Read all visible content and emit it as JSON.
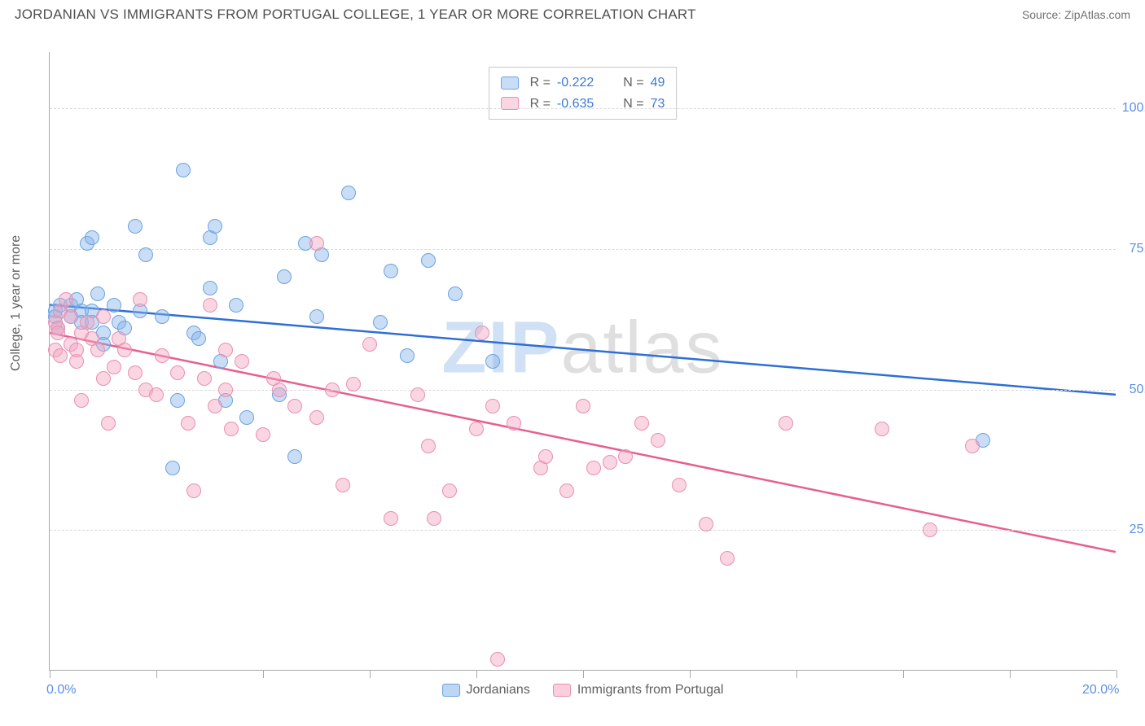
{
  "header": {
    "title": "JORDANIAN VS IMMIGRANTS FROM PORTUGAL COLLEGE, 1 YEAR OR MORE CORRELATION CHART",
    "source": "Source: ZipAtlas.com"
  },
  "chart": {
    "type": "scatter",
    "yaxis_title": "College, 1 year or more",
    "xlim": [
      0,
      20
    ],
    "ylim": [
      0,
      110
    ],
    "xtick_labels": {
      "0": "0.0%",
      "20": "20.0%"
    },
    "ytick_values": [
      25,
      50,
      75,
      100
    ],
    "ytick_labels": {
      "25": "25.0%",
      "50": "50.0%",
      "75": "75.0%",
      "100": "100.0%"
    },
    "xtick_marks": [
      0,
      2,
      4,
      6,
      8,
      10,
      12,
      14,
      16,
      18,
      20
    ],
    "grid_color": "#d9d9d9",
    "background_color": "#ffffff",
    "axis_color": "#aaaaaa",
    "label_color": "#5a8fe6",
    "marker_radius": 9,
    "watermark": {
      "zip": "ZIP",
      "atlas": "atlas"
    },
    "series": [
      {
        "name": "Jordanians",
        "fill": "rgba(135,180,235,0.45)",
        "stroke": "#6ba3e0",
        "trend_color": "#2e6fd6",
        "trend": {
          "x1": 0,
          "y1": 65,
          "x2": 20,
          "y2": 49
        },
        "R": "-0.222",
        "N": "49",
        "points": [
          [
            0.1,
            64
          ],
          [
            0.1,
            63
          ],
          [
            0.2,
            65
          ],
          [
            0.15,
            61
          ],
          [
            0.4,
            65
          ],
          [
            0.4,
            63
          ],
          [
            0.5,
            66
          ],
          [
            0.6,
            64
          ],
          [
            0.6,
            62
          ],
          [
            0.7,
            76
          ],
          [
            0.8,
            77
          ],
          [
            0.8,
            64
          ],
          [
            0.8,
            62
          ],
          [
            0.9,
            67
          ],
          [
            1.0,
            60
          ],
          [
            1.0,
            58
          ],
          [
            1.2,
            65
          ],
          [
            1.3,
            62
          ],
          [
            1.4,
            61
          ],
          [
            1.6,
            79
          ],
          [
            1.7,
            64
          ],
          [
            1.8,
            74
          ],
          [
            2.1,
            63
          ],
          [
            2.3,
            36
          ],
          [
            2.4,
            48
          ],
          [
            2.5,
            89
          ],
          [
            2.7,
            60
          ],
          [
            2.8,
            59
          ],
          [
            3.0,
            77
          ],
          [
            3.0,
            68
          ],
          [
            3.1,
            79
          ],
          [
            3.2,
            55
          ],
          [
            3.3,
            48
          ],
          [
            3.5,
            65
          ],
          [
            3.7,
            45
          ],
          [
            4.3,
            49
          ],
          [
            4.4,
            70
          ],
          [
            4.6,
            38
          ],
          [
            4.8,
            76
          ],
          [
            5.0,
            63
          ],
          [
            5.1,
            74
          ],
          [
            5.6,
            85
          ],
          [
            6.2,
            62
          ],
          [
            6.4,
            71
          ],
          [
            6.7,
            56
          ],
          [
            7.1,
            73
          ],
          [
            7.6,
            67
          ],
          [
            8.3,
            55
          ],
          [
            17.5,
            41
          ]
        ]
      },
      {
        "name": "Immigrants from Portugal",
        "fill": "rgba(245,165,190,0.45)",
        "stroke": "#e98fb0",
        "trend_color": "#e75f8f",
        "trend": {
          "x1": 0,
          "y1": 60,
          "x2": 20,
          "y2": 21
        },
        "R": "-0.635",
        "N": "73",
        "points": [
          [
            0.1,
            62
          ],
          [
            0.1,
            57
          ],
          [
            0.15,
            61
          ],
          [
            0.15,
            60
          ],
          [
            0.2,
            64
          ],
          [
            0.2,
            56
          ],
          [
            0.3,
            66
          ],
          [
            0.4,
            63
          ],
          [
            0.4,
            58
          ],
          [
            0.5,
            55
          ],
          [
            0.5,
            57
          ],
          [
            0.6,
            60
          ],
          [
            0.7,
            62
          ],
          [
            0.8,
            59
          ],
          [
            0.6,
            48
          ],
          [
            0.9,
            57
          ],
          [
            1.0,
            52
          ],
          [
            1.0,
            63
          ],
          [
            1.1,
            44
          ],
          [
            1.2,
            54
          ],
          [
            1.3,
            59
          ],
          [
            1.4,
            57
          ],
          [
            1.6,
            53
          ],
          [
            1.8,
            50
          ],
          [
            1.7,
            66
          ],
          [
            2.0,
            49
          ],
          [
            2.1,
            56
          ],
          [
            2.4,
            53
          ],
          [
            2.6,
            44
          ],
          [
            2.7,
            32
          ],
          [
            2.9,
            52
          ],
          [
            3.0,
            65
          ],
          [
            3.1,
            47
          ],
          [
            3.3,
            57
          ],
          [
            3.3,
            50
          ],
          [
            3.4,
            43
          ],
          [
            3.6,
            55
          ],
          [
            4.0,
            42
          ],
          [
            4.2,
            52
          ],
          [
            4.3,
            50
          ],
          [
            4.6,
            47
          ],
          [
            5.0,
            45
          ],
          [
            5.0,
            76
          ],
          [
            5.3,
            50
          ],
          [
            5.5,
            33
          ],
          [
            5.7,
            51
          ],
          [
            6.0,
            58
          ],
          [
            6.4,
            27
          ],
          [
            6.9,
            49
          ],
          [
            7.1,
            40
          ],
          [
            7.2,
            27
          ],
          [
            7.5,
            32
          ],
          [
            8.0,
            43
          ],
          [
            8.1,
            60
          ],
          [
            8.3,
            47
          ],
          [
            8.4,
            2
          ],
          [
            8.7,
            44
          ],
          [
            9.2,
            36
          ],
          [
            9.3,
            38
          ],
          [
            9.7,
            32
          ],
          [
            10.0,
            47
          ],
          [
            10.2,
            36
          ],
          [
            10.5,
            37
          ],
          [
            10.8,
            38
          ],
          [
            11.1,
            44
          ],
          [
            11.4,
            41
          ],
          [
            11.8,
            33
          ],
          [
            12.3,
            26
          ],
          [
            12.7,
            20
          ],
          [
            13.8,
            44
          ],
          [
            15.6,
            43
          ],
          [
            16.5,
            25
          ],
          [
            17.3,
            40
          ]
        ]
      }
    ],
    "bottom_legend": [
      {
        "label": "Jordanians",
        "fill": "rgba(135,180,235,0.55)",
        "stroke": "#6ba3e0"
      },
      {
        "label": "Immigrants from Portugal",
        "fill": "rgba(245,165,190,0.55)",
        "stroke": "#e98fb0"
      }
    ]
  }
}
